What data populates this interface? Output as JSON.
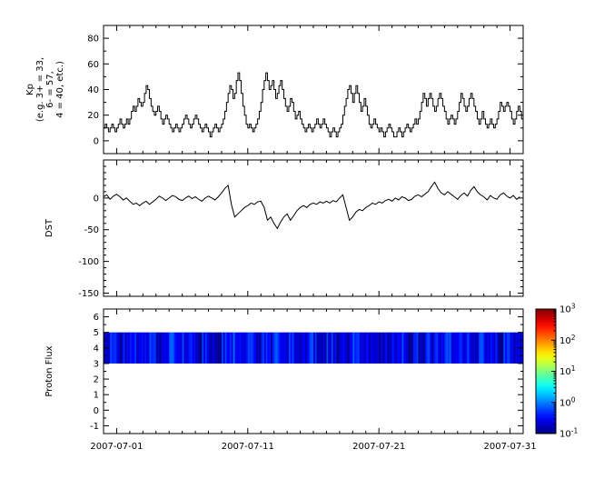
{
  "figure": {
    "background": "#ffffff",
    "line_color": "#000000",
    "frame_color": "#000000"
  },
  "x_axis": {
    "domain": [
      0,
      32
    ],
    "tick_days": [
      1,
      11,
      21,
      31
    ],
    "tick_labels": [
      "2007-07-01",
      "2007-07-11",
      "2007-07-21",
      "2007-07-31"
    ],
    "minor_step_days": 1
  },
  "chart_data": [
    {
      "type": "line",
      "name": "kp-index",
      "ylabel_lines": [
        "Kp",
        "(e.g. 3+ = 33,",
        "6- = 57,",
        "4 = 40, etc.)"
      ],
      "ylim": [
        -10,
        90
      ],
      "yticks": [
        0,
        20,
        40,
        60,
        80
      ],
      "yminor_step": 10,
      "line_style": "step",
      "x_step_days": 0.125,
      "values": [
        10,
        13,
        10,
        7,
        10,
        13,
        10,
        7,
        10,
        13,
        17,
        13,
        10,
        13,
        17,
        13,
        17,
        23,
        27,
        23,
        27,
        33,
        30,
        27,
        30,
        37,
        43,
        40,
        33,
        27,
        23,
        20,
        23,
        27,
        23,
        17,
        13,
        17,
        20,
        17,
        13,
        10,
        7,
        10,
        13,
        10,
        7,
        10,
        13,
        17,
        20,
        17,
        13,
        10,
        13,
        17,
        20,
        17,
        13,
        10,
        7,
        10,
        13,
        10,
        7,
        3,
        7,
        10,
        13,
        10,
        7,
        10,
        13,
        17,
        23,
        30,
        37,
        43,
        40,
        33,
        37,
        47,
        53,
        47,
        37,
        27,
        20,
        13,
        10,
        13,
        10,
        7,
        10,
        13,
        17,
        23,
        30,
        40,
        47,
        53,
        47,
        40,
        43,
        47,
        40,
        33,
        37,
        43,
        47,
        40,
        33,
        27,
        23,
        27,
        33,
        30,
        23,
        17,
        20,
        23,
        17,
        13,
        10,
        7,
        10,
        13,
        10,
        7,
        10,
        13,
        17,
        13,
        10,
        13,
        17,
        13,
        10,
        7,
        3,
        7,
        10,
        7,
        3,
        7,
        10,
        13,
        20,
        27,
        33,
        40,
        43,
        37,
        30,
        37,
        43,
        37,
        30,
        23,
        27,
        33,
        27,
        20,
        13,
        10,
        13,
        17,
        13,
        10,
        7,
        10,
        7,
        3,
        7,
        10,
        13,
        10,
        7,
        3,
        3,
        7,
        10,
        7,
        3,
        7,
        10,
        13,
        10,
        7,
        10,
        13,
        17,
        13,
        17,
        23,
        30,
        37,
        33,
        27,
        33,
        37,
        33,
        27,
        23,
        27,
        33,
        37,
        33,
        27,
        23,
        17,
        13,
        17,
        20,
        17,
        13,
        17,
        23,
        30,
        37,
        33,
        27,
        23,
        27,
        33,
        37,
        33,
        27,
        23,
        17,
        13,
        17,
        23,
        17,
        13,
        10,
        13,
        17,
        13,
        10,
        13,
        17,
        23,
        30,
        27,
        23,
        27,
        30,
        27,
        23,
        17,
        13,
        17,
        23,
        27,
        23,
        17
      ]
    },
    {
      "type": "line",
      "name": "dst-index",
      "ylabel_lines": [
        "DST"
      ],
      "ylim": [
        -155,
        60
      ],
      "yticks": [
        0,
        -50,
        -100,
        -150
      ],
      "yminor_step": 10,
      "line_style": "plain",
      "x_step_days": 0.25,
      "values": [
        2,
        5,
        -2,
        3,
        6,
        2,
        -3,
        0,
        -5,
        -10,
        -8,
        -12,
        -8,
        -5,
        -10,
        -6,
        -2,
        3,
        0,
        -4,
        0,
        4,
        2,
        -2,
        -4,
        0,
        3,
        -1,
        2,
        -2,
        -5,
        0,
        3,
        0,
        -3,
        2,
        8,
        15,
        20,
        -10,
        -30,
        -25,
        -20,
        -15,
        -12,
        -8,
        -10,
        -6,
        -5,
        -15,
        -35,
        -30,
        -40,
        -48,
        -38,
        -30,
        -25,
        -35,
        -28,
        -20,
        -15,
        -12,
        -15,
        -10,
        -8,
        -10,
        -6,
        -8,
        -5,
        -8,
        -4,
        -6,
        0,
        5,
        -15,
        -35,
        -30,
        -22,
        -18,
        -20,
        -15,
        -12,
        -8,
        -10,
        -6,
        -8,
        -4,
        -2,
        -5,
        0,
        -3,
        2,
        0,
        -4,
        -2,
        3,
        5,
        2,
        6,
        10,
        18,
        25,
        15,
        8,
        5,
        10,
        6,
        2,
        -2,
        4,
        8,
        3,
        12,
        18,
        10,
        5,
        2,
        -3,
        4,
        0,
        -2,
        5,
        8,
        3,
        0,
        4,
        -2,
        2
      ]
    },
    {
      "type": "heatmap",
      "name": "proton-flux",
      "ylabel_lines": [
        "Proton Flux"
      ],
      "ylim": [
        -1.5,
        6.5
      ],
      "yticks": [
        6,
        5,
        4,
        3,
        2,
        1,
        0,
        -1
      ],
      "yminor_step": 0.5,
      "band": {
        "ymin": 3,
        "ymax": 5
      },
      "x_step_days": 0.5,
      "values": [
        0.15,
        0.3,
        0.12,
        0.22,
        0.4,
        0.18,
        0.25,
        0.35,
        0.14,
        0.2,
        0.45,
        0.16,
        0.3,
        0.22,
        0.12,
        0.38,
        0.2,
        0.15,
        0.28,
        0.42,
        0.18,
        0.24,
        0.33,
        0.15,
        0.26,
        0.19,
        0.36,
        0.14,
        0.29,
        0.22,
        0.17,
        0.31,
        0.24,
        0.13,
        0.35,
        0.2,
        0.27,
        0.16,
        0.39,
        0.23,
        0.18,
        0.3,
        0.14,
        0.26,
        0.21,
        0.34,
        0.17,
        0.28,
        0.12,
        0.32,
        0.25,
        0.19,
        0.37,
        0.15,
        0.23,
        0.29,
        0.16,
        0.33,
        0.2,
        0.27,
        0.14,
        0.31,
        0.24,
        0.18
      ],
      "colorbar": {
        "scale": "log",
        "range": [
          0.1,
          1000
        ],
        "colormap": "jet",
        "tick_labels_bottom_to_top": [
          "10^-1",
          "10^0",
          "10^1",
          "10^2",
          "10^3"
        ]
      }
    }
  ]
}
